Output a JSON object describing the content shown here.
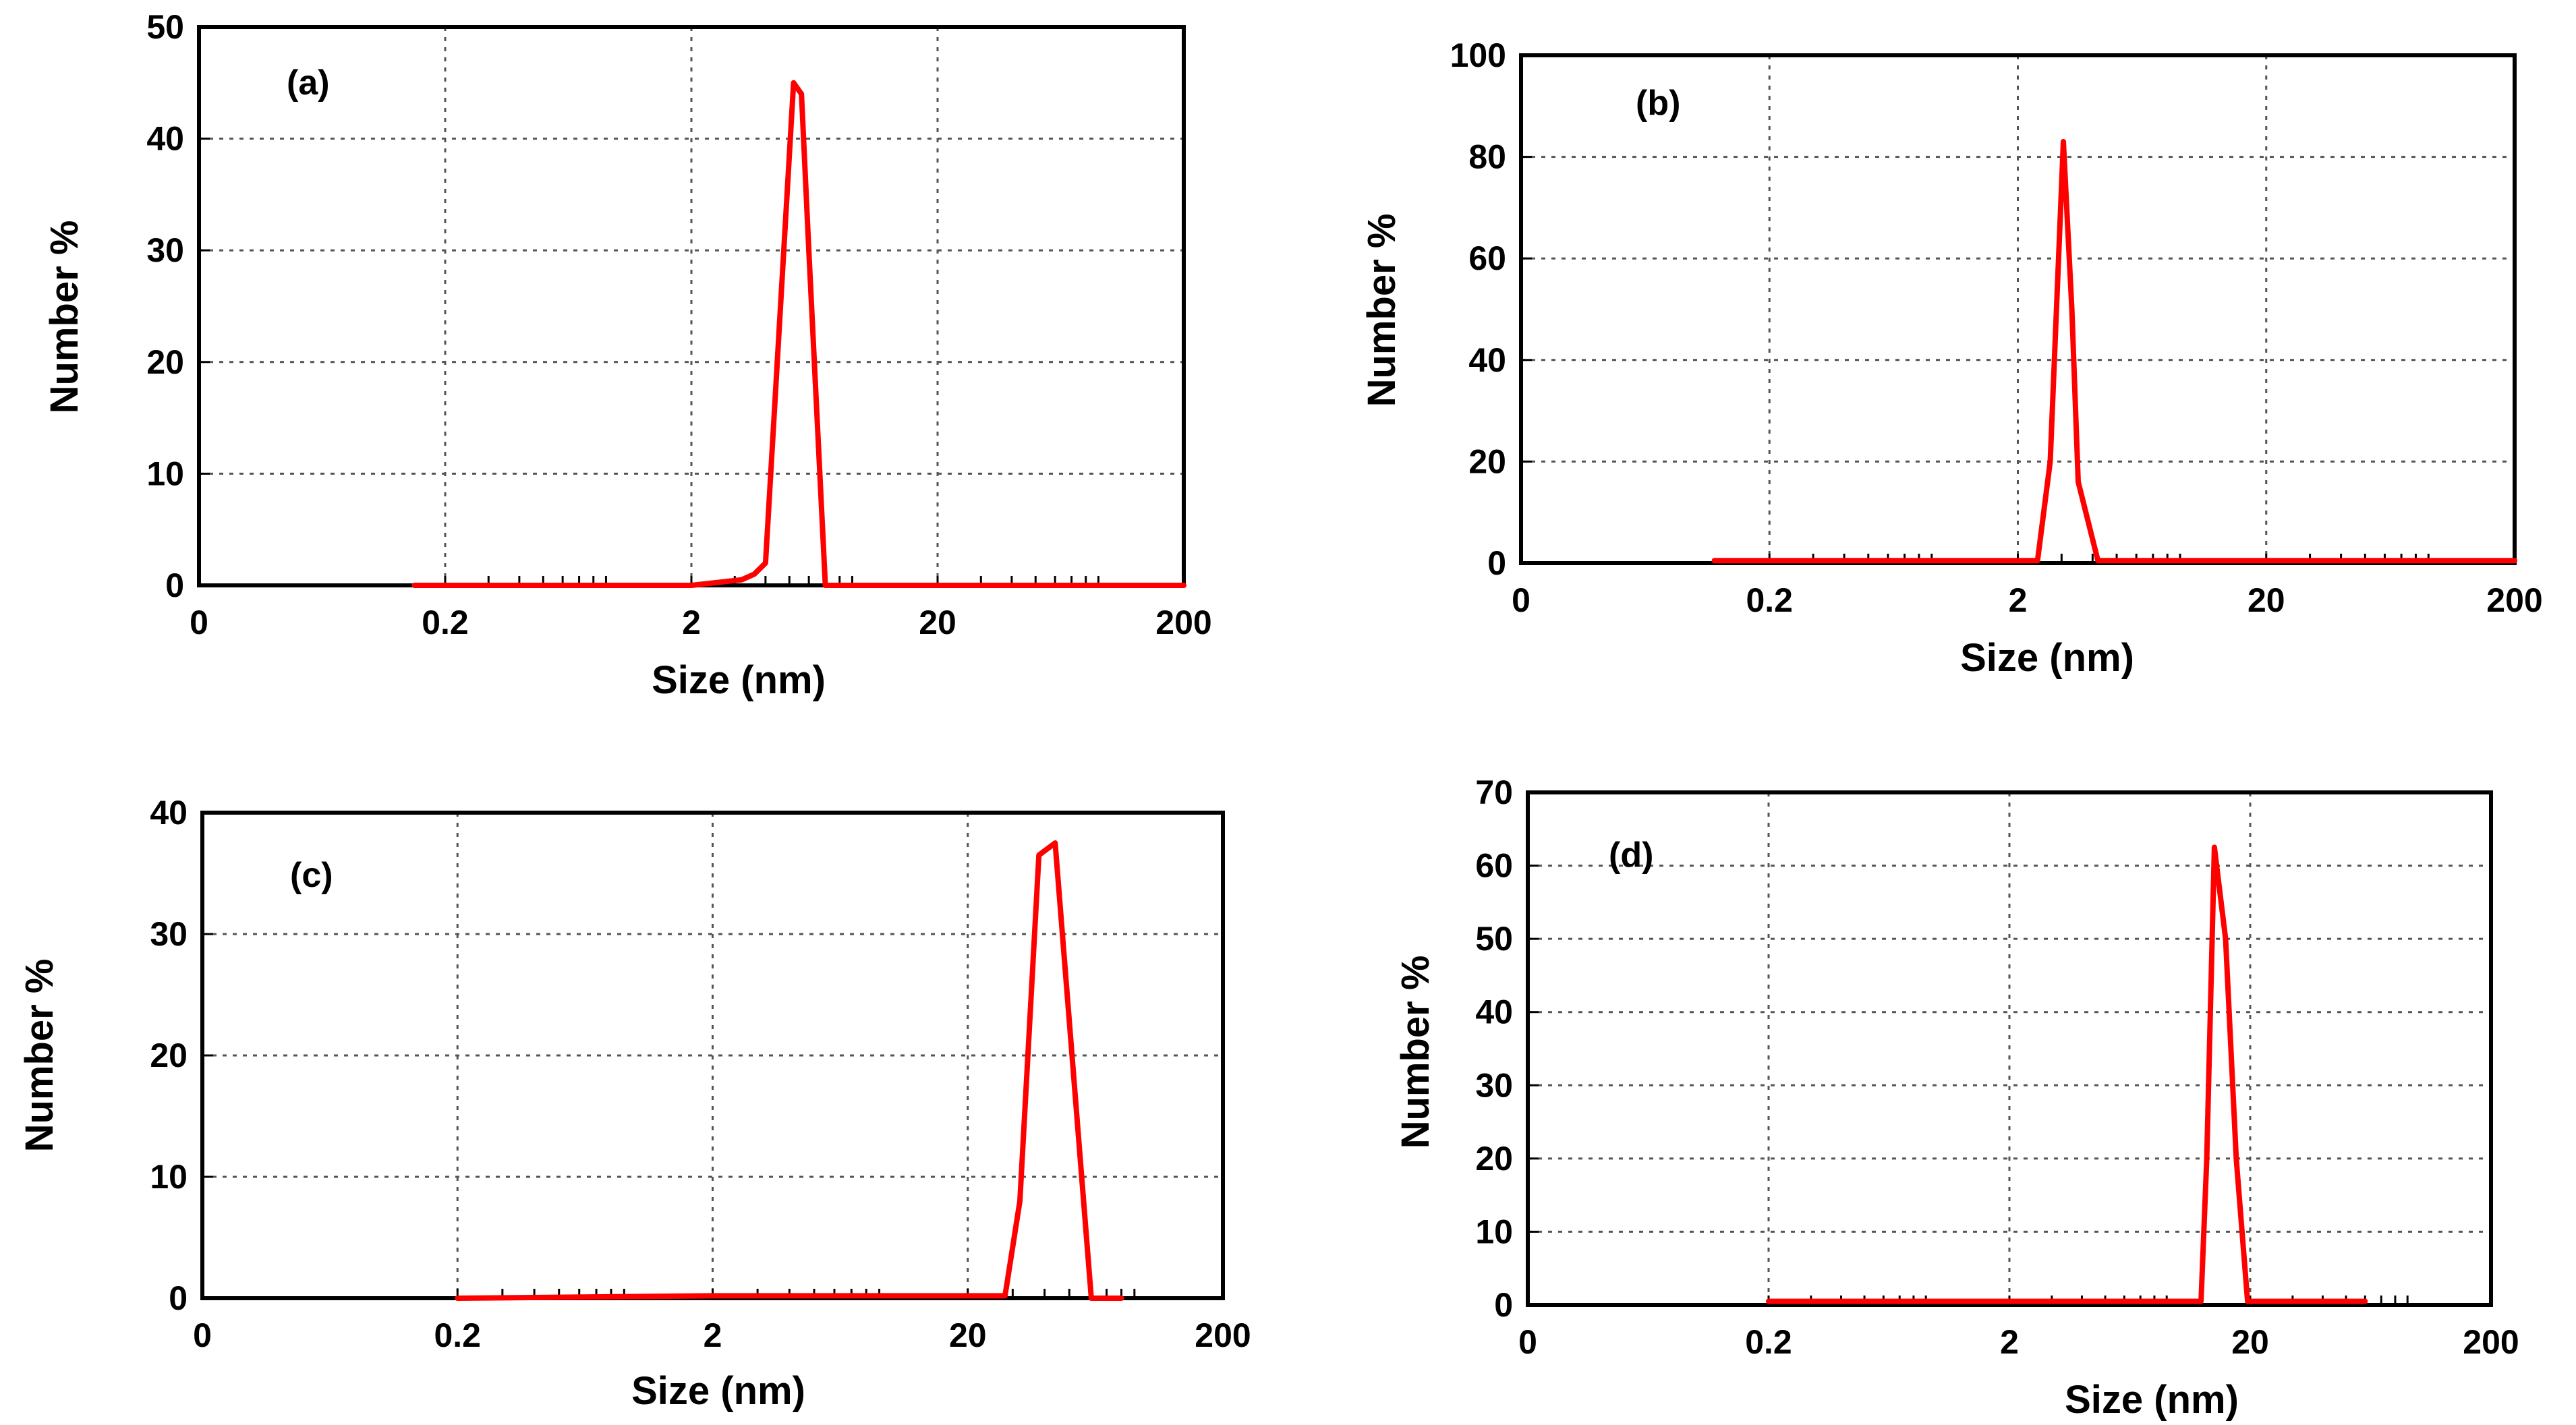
{
  "figure": {
    "line_color": "#ff0000",
    "background": "#ffffff"
  },
  "chart_data": [
    {
      "type": "line",
      "panel_label": "(a)",
      "xlabel": "Size (nm)",
      "ylabel": "Number %",
      "xscale": "log",
      "xlim": [
        0.02,
        200
      ],
      "ylim": [
        0,
        50
      ],
      "x_tick_values": [
        0.02,
        0.2,
        2,
        20,
        200
      ],
      "x_tick_labels": [
        "0",
        "0.2",
        "2",
        "20",
        "200"
      ],
      "y_ticks": [
        0,
        10,
        20,
        30,
        40,
        50
      ],
      "series": [
        {
          "name": "(a)",
          "x": [
            0.15,
            1.0,
            2.0,
            3.2,
            3.6,
            4.0,
            5.2,
            5.6,
            6.0,
            7.0,
            8.0,
            9.0,
            200
          ],
          "y": [
            0,
            0,
            0,
            0.5,
            1.0,
            2.0,
            45,
            44,
            30,
            0,
            0,
            0,
            0
          ]
        }
      ]
    },
    {
      "type": "line",
      "panel_label": "(b)",
      "xlabel": "Size (nm)",
      "ylabel": "Number %",
      "xscale": "log",
      "xlim": [
        0.02,
        200
      ],
      "ylim": [
        0,
        100
      ],
      "x_tick_values": [
        0.02,
        0.2,
        2,
        20,
        200
      ],
      "x_tick_labels": [
        "0",
        "0.2",
        "2",
        "20",
        "200"
      ],
      "y_ticks": [
        0,
        20,
        40,
        60,
        80,
        100
      ],
      "series": [
        {
          "name": "(b)",
          "x": [
            0.12,
            0.5,
            2.4,
            2.7,
            3.05,
            3.3,
            3.5,
            4.2,
            200
          ],
          "y": [
            0.5,
            0.5,
            0.5,
            20,
            83,
            50,
            16,
            0.5,
            0.5
          ]
        }
      ]
    },
    {
      "type": "line",
      "panel_label": "(c)",
      "xlabel": "Size (nm)",
      "ylabel": "Number %",
      "xscale": "log",
      "xlim": [
        0.02,
        200
      ],
      "ylim": [
        0,
        40
      ],
      "x_tick_values": [
        0.02,
        0.2,
        2,
        20,
        200
      ],
      "x_tick_labels": [
        "0",
        "0.2",
        "2",
        "20",
        "200"
      ],
      "y_ticks": [
        0,
        10,
        20,
        30,
        40
      ],
      "series": [
        {
          "name": "(c)",
          "x": [
            0.2,
            2.0,
            10,
            28,
            32,
            38,
            44,
            61,
            80
          ],
          "y": [
            0,
            0.2,
            0.2,
            0.2,
            8,
            36.5,
            37.5,
            0,
            0
          ]
        }
      ]
    },
    {
      "type": "line",
      "panel_label": "(d)",
      "xlabel": "Size (nm)",
      "ylabel": "Number %",
      "xscale": "log",
      "xlim": [
        0.02,
        200
      ],
      "ylim": [
        0,
        70
      ],
      "x_tick_values": [
        0.02,
        0.2,
        2,
        20,
        200
      ],
      "x_tick_labels": [
        "0",
        "0.2",
        "2",
        "20",
        "200"
      ],
      "y_ticks": [
        0,
        10,
        20,
        30,
        40,
        50,
        60,
        70
      ],
      "series": [
        {
          "name": "(d)",
          "x": [
            0.2,
            1.0,
            5.0,
            12.5,
            13.2,
            14.2,
            15.8,
            17.5,
            19.5,
            60
          ],
          "y": [
            0.5,
            0.5,
            0.5,
            0.5,
            20,
            62.5,
            50,
            20,
            0.5,
            0.5
          ]
        }
      ]
    }
  ]
}
